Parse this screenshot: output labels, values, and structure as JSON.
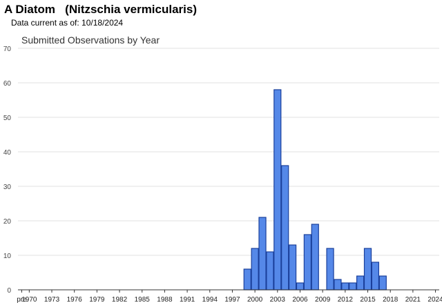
{
  "header": {
    "title": "A Diatom   (Nitzschia vermicularis)",
    "data_current": "Data current as of: 10/18/2024"
  },
  "colors": {
    "bar_fill": "#5588e8",
    "bar_stroke": "#1a3f9a",
    "grid": "#e2e2e2",
    "axis": "#333333"
  },
  "chart_data": {
    "type": "bar",
    "title": "Submitted Observations by Year",
    "xlabel": "",
    "ylabel": "",
    "ylim": [
      0,
      70
    ],
    "yticks": [
      0,
      10,
      20,
      30,
      40,
      50,
      60,
      70
    ],
    "grid": true,
    "categories": [
      "pre",
      "1970",
      "1971",
      "1972",
      "1973",
      "1974",
      "1975",
      "1976",
      "1977",
      "1978",
      "1979",
      "1980",
      "1981",
      "1982",
      "1983",
      "1984",
      "1985",
      "1986",
      "1987",
      "1988",
      "1989",
      "1990",
      "1991",
      "1992",
      "1993",
      "1994",
      "1995",
      "1996",
      "1997",
      "1998",
      "1999",
      "2000",
      "2001",
      "2002",
      "2003",
      "2004",
      "2005",
      "2006",
      "2007",
      "2008",
      "2009",
      "2010",
      "2011",
      "2012",
      "2013",
      "2014",
      "2015",
      "2016",
      "2017",
      "2018",
      "2019",
      "2020",
      "2021",
      "2022",
      "2023",
      "2024"
    ],
    "values": [
      0,
      0,
      0,
      0,
      0,
      0,
      0,
      0,
      0,
      0,
      0,
      0,
      0,
      0,
      0,
      0,
      0,
      0,
      0,
      0,
      0,
      0,
      0,
      0,
      0,
      0,
      0,
      0,
      0,
      0,
      6,
      12,
      21,
      11,
      58,
      36,
      13,
      2,
      16,
      19,
      0,
      12,
      3,
      2,
      2,
      4,
      12,
      8,
      4,
      0,
      0,
      0,
      0,
      0,
      0,
      0
    ],
    "xtick_labels": [
      "pre",
      "1970",
      "1973",
      "1976",
      "1979",
      "1982",
      "1985",
      "1988",
      "1991",
      "1994",
      "1997",
      "2000",
      "2003",
      "2006",
      "2009",
      "2012",
      "2015",
      "2018",
      "2021",
      "2024"
    ]
  }
}
